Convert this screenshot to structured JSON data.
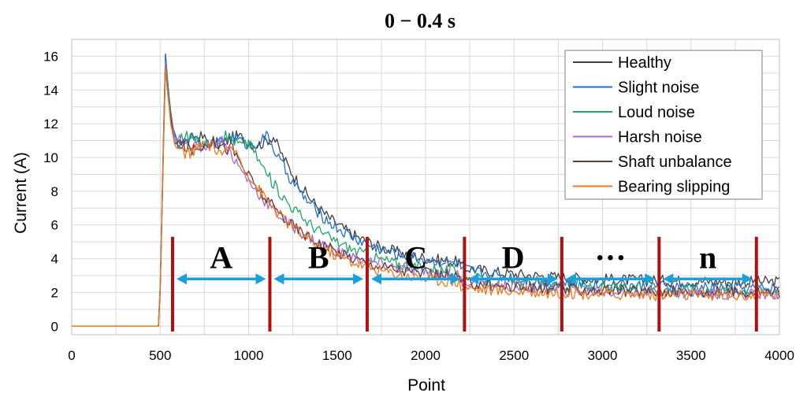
{
  "chart_data": {
    "type": "line",
    "title": "0 − 0.4 s",
    "xlabel": "Point",
    "ylabel": "Current (A)",
    "xlim": [
      0,
      4000
    ],
    "ylim": [
      -0.5,
      17
    ],
    "x_ticks": [
      "0",
      "500",
      "1000",
      "1500",
      "2000",
      "2500",
      "3000",
      "3500",
      "4000"
    ],
    "y_ticks": [
      "0",
      "2",
      "4",
      "6",
      "8",
      "10",
      "12",
      "14",
      "16"
    ],
    "grid": true,
    "legend_position": "top-right",
    "series": [
      {
        "name": "Healthy",
        "color": "#404040",
        "peak": 16.0,
        "plateau": 11.0,
        "plateau_end": 1150,
        "decay_end": 2200,
        "mid": 3.5,
        "tail": 2.6
      },
      {
        "name": "Slight noise",
        "color": "#1f6fd1",
        "peak": 16.1,
        "plateau": 11.0,
        "plateau_end": 1120,
        "decay_end": 2200,
        "mid": 3.4,
        "tail": 2.2
      },
      {
        "name": "Loud noise",
        "color": "#1fa866",
        "peak": 15.8,
        "plateau": 11.0,
        "plateau_end": 1000,
        "decay_end": 2200,
        "mid": 2.9,
        "tail": 2.1
      },
      {
        "name": "Harsh noise",
        "color": "#a46be0",
        "peak": 15.6,
        "plateau": 10.8,
        "plateau_end": 870,
        "decay_end": 2200,
        "mid": 2.7,
        "tail": 1.9
      },
      {
        "name": "Shaft unbalance",
        "color": "#6a3a3a",
        "peak": 15.4,
        "plateau": 10.7,
        "plateau_end": 900,
        "decay_end": 2200,
        "mid": 2.6,
        "tail": 2.0
      },
      {
        "name": "Bearing slipping",
        "color": "#f07820",
        "peak": 15.2,
        "plateau": 10.5,
        "plateau_end": 920,
        "decay_end": 2200,
        "mid": 2.3,
        "tail": 1.8
      }
    ],
    "segment_boundaries": [
      570,
      1120,
      1670,
      2220,
      2770,
      3320,
      3870
    ],
    "segments": [
      {
        "label": "A",
        "from": 570,
        "to": 1120
      },
      {
        "label": "B",
        "from": 1120,
        "to": 1670
      },
      {
        "label": "C",
        "from": 1670,
        "to": 2220
      },
      {
        "label": "D",
        "from": 2220,
        "to": 2770
      },
      {
        "label": "···",
        "from": 2770,
        "to": 3320
      },
      {
        "label": "n",
        "from": 3320,
        "to": 3870
      }
    ],
    "arrow_level": 2.8
  }
}
